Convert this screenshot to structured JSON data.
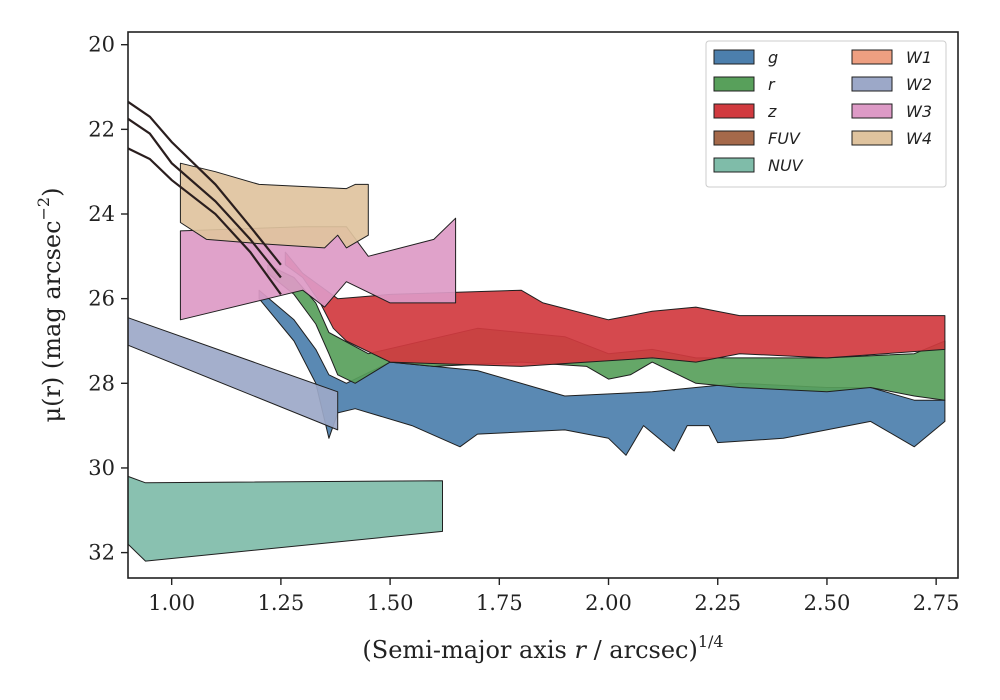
{
  "chart_data": {
    "type": "area",
    "xlabel": {
      "main": "(Semi-major axis ",
      "var": "r",
      "rest": " / arcsec)",
      "sup": "1/4"
    },
    "ylabel": {
      "main": "μ(r) (mag arcsec",
      "sup": "−2",
      "close": ")"
    },
    "xlim": [
      0.9,
      2.8
    ],
    "ylim": [
      32.6,
      19.7
    ],
    "xticks": [
      "1.00",
      "1.25",
      "1.50",
      "1.75",
      "2.00",
      "2.25",
      "2.50",
      "2.75"
    ],
    "yticks": [
      "20",
      "22",
      "24",
      "26",
      "28",
      "30",
      "32"
    ],
    "legend_position": "top-right",
    "series": [
      {
        "name": "g",
        "color": "#4c7fad",
        "upper": [
          [
            1.2,
            25.8
          ],
          [
            1.28,
            26.5
          ],
          [
            1.33,
            27.2
          ],
          [
            1.36,
            27.8
          ],
          [
            1.4,
            28.0
          ],
          [
            1.5,
            27.5
          ],
          [
            1.7,
            27.7
          ],
          [
            1.9,
            28.3
          ],
          [
            2.1,
            28.2
          ],
          [
            2.3,
            28.0
          ],
          [
            2.5,
            28.1
          ],
          [
            2.6,
            28.1
          ],
          [
            2.7,
            28.4
          ],
          [
            2.77,
            28.4
          ]
        ],
        "lower": [
          [
            1.2,
            26.0
          ],
          [
            1.28,
            27.0
          ],
          [
            1.33,
            28.0
          ],
          [
            1.36,
            29.3
          ],
          [
            1.38,
            28.7
          ],
          [
            1.42,
            28.6
          ],
          [
            1.55,
            29.0
          ],
          [
            1.66,
            29.5
          ],
          [
            1.7,
            29.2
          ],
          [
            1.9,
            29.1
          ],
          [
            2.0,
            29.3
          ],
          [
            2.04,
            29.7
          ],
          [
            2.08,
            29.0
          ],
          [
            2.15,
            29.6
          ],
          [
            2.18,
            29.0
          ],
          [
            2.23,
            29.0
          ],
          [
            2.25,
            29.4
          ],
          [
            2.4,
            29.3
          ],
          [
            2.6,
            28.9
          ],
          [
            2.7,
            29.5
          ],
          [
            2.77,
            28.9
          ]
        ]
      },
      {
        "name": "r",
        "color": "#58a05b",
        "upper": [
          [
            1.22,
            25.2
          ],
          [
            1.28,
            25.5
          ],
          [
            1.33,
            26.1
          ],
          [
            1.36,
            26.8
          ],
          [
            1.45,
            27.3
          ],
          [
            1.7,
            26.7
          ],
          [
            1.9,
            26.9
          ],
          [
            2.0,
            27.3
          ],
          [
            2.1,
            27.2
          ],
          [
            2.2,
            27.4
          ],
          [
            2.3,
            27.4
          ],
          [
            2.5,
            27.4
          ],
          [
            2.7,
            27.3
          ],
          [
            2.77,
            27.0
          ]
        ],
        "lower": [
          [
            1.22,
            25.4
          ],
          [
            1.28,
            25.9
          ],
          [
            1.33,
            26.6
          ],
          [
            1.36,
            27.3
          ],
          [
            1.38,
            27.8
          ],
          [
            1.42,
            28.0
          ],
          [
            1.5,
            27.5
          ],
          [
            1.6,
            27.6
          ],
          [
            1.8,
            27.5
          ],
          [
            1.95,
            27.6
          ],
          [
            2.0,
            27.9
          ],
          [
            2.05,
            27.8
          ],
          [
            2.1,
            27.5
          ],
          [
            2.2,
            28.0
          ],
          [
            2.3,
            28.1
          ],
          [
            2.5,
            28.2
          ],
          [
            2.6,
            28.1
          ],
          [
            2.7,
            28.3
          ],
          [
            2.77,
            28.4
          ]
        ]
      },
      {
        "name": "z",
        "color": "#d13a3f",
        "upper": [
          [
            1.26,
            24.9
          ],
          [
            1.3,
            25.4
          ],
          [
            1.34,
            25.7
          ],
          [
            1.38,
            26.0
          ],
          [
            1.5,
            25.9
          ],
          [
            1.8,
            25.8
          ],
          [
            1.85,
            26.1
          ],
          [
            2.0,
            26.5
          ],
          [
            2.1,
            26.3
          ],
          [
            2.2,
            26.2
          ],
          [
            2.3,
            26.4
          ],
          [
            2.77,
            26.4
          ]
        ],
        "lower": [
          [
            1.26,
            25.2
          ],
          [
            1.3,
            25.5
          ],
          [
            1.34,
            26.1
          ],
          [
            1.37,
            26.7
          ],
          [
            1.4,
            27.0
          ],
          [
            1.5,
            27.5
          ],
          [
            1.8,
            27.6
          ],
          [
            1.95,
            27.5
          ],
          [
            2.1,
            27.4
          ],
          [
            2.2,
            27.5
          ],
          [
            2.3,
            27.3
          ],
          [
            2.5,
            27.4
          ],
          [
            2.77,
            27.2
          ]
        ]
      },
      {
        "name": "FUV",
        "color": "#a5694a",
        "upper": [],
        "lower": []
      },
      {
        "name": "NUV",
        "color": "#7fbca9",
        "upper": [
          [
            0.9,
            30.2
          ],
          [
            0.94,
            30.35
          ],
          [
            1.62,
            30.3
          ]
        ],
        "lower": [
          [
            0.9,
            31.8
          ],
          [
            0.94,
            32.2
          ],
          [
            1.62,
            31.5
          ]
        ]
      },
      {
        "name": "W1",
        "color": "#ee9f81",
        "upper": [],
        "lower": []
      },
      {
        "name": "W2",
        "color": "#9ca8c8",
        "upper": [
          [
            0.9,
            26.45
          ],
          [
            1.38,
            28.2
          ]
        ],
        "lower": [
          [
            0.9,
            27.1
          ],
          [
            1.38,
            29.1
          ]
        ]
      },
      {
        "name": "W3",
        "color": "#dd9ac6",
        "upper": [
          [
            1.02,
            24.4
          ],
          [
            1.3,
            24.3
          ],
          [
            1.4,
            24.3
          ],
          [
            1.45,
            25.0
          ],
          [
            1.6,
            24.6
          ],
          [
            1.65,
            24.1
          ]
        ],
        "lower": [
          [
            1.02,
            26.5
          ],
          [
            1.3,
            25.8
          ],
          [
            1.35,
            26.2
          ],
          [
            1.4,
            25.6
          ],
          [
            1.5,
            26.1
          ],
          [
            1.65,
            26.1
          ]
        ]
      },
      {
        "name": "W4",
        "color": "#dfc39e",
        "upper": [
          [
            1.02,
            22.8
          ],
          [
            1.1,
            23.0
          ],
          [
            1.2,
            23.3
          ],
          [
            1.4,
            23.4
          ],
          [
            1.42,
            23.3
          ],
          [
            1.45,
            23.3
          ]
        ],
        "lower": [
          [
            1.02,
            24.2
          ],
          [
            1.08,
            24.6
          ],
          [
            1.2,
            24.7
          ],
          [
            1.35,
            24.8
          ],
          [
            1.38,
            24.5
          ],
          [
            1.4,
            24.8
          ],
          [
            1.45,
            24.5
          ]
        ]
      }
    ],
    "profile_lines": [
      [
        [
          0.9,
          21.35
        ],
        [
          0.95,
          21.7
        ],
        [
          1.0,
          22.3
        ],
        [
          1.1,
          23.3
        ],
        [
          1.18,
          24.3
        ],
        [
          1.25,
          25.2
        ]
      ],
      [
        [
          0.9,
          21.75
        ],
        [
          0.95,
          22.1
        ],
        [
          1.0,
          22.8
        ],
        [
          1.1,
          23.7
        ],
        [
          1.18,
          24.6
        ],
        [
          1.25,
          25.5
        ]
      ],
      [
        [
          0.9,
          22.45
        ],
        [
          0.95,
          22.7
        ],
        [
          1.0,
          23.2
        ],
        [
          1.1,
          24.0
        ],
        [
          1.18,
          24.9
        ],
        [
          1.25,
          25.9
        ]
      ]
    ]
  }
}
